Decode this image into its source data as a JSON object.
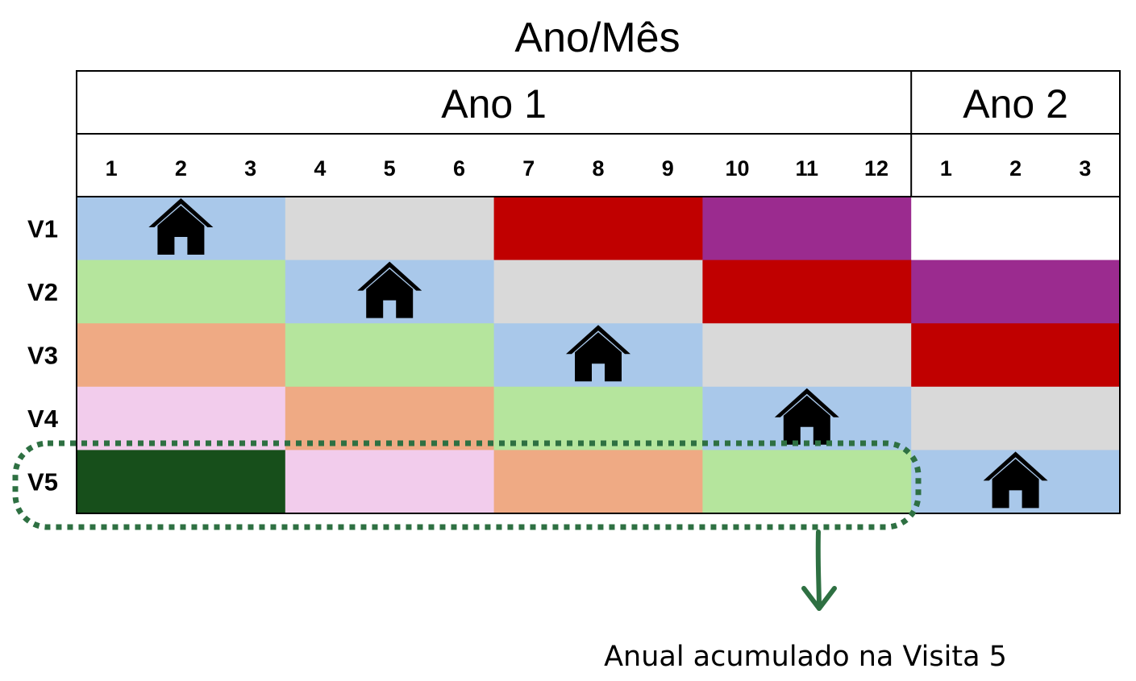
{
  "title": "Ano/Mês",
  "years": [
    {
      "label": "Ano 1",
      "months": [
        "1",
        "2",
        "3",
        "4",
        "5",
        "6",
        "7",
        "8",
        "9",
        "10",
        "11",
        "12"
      ]
    },
    {
      "label": "Ano 2",
      "months": [
        "1",
        "2",
        "3"
      ]
    }
  ],
  "palette": {
    "home_visit": "#a9c8ea",
    "gray": "#d9d9d9",
    "red": "#c00000",
    "purple": "#9b2b8f",
    "light_green": "#b5e59d",
    "salmon": "#efaa84",
    "pink": "#f2ccec",
    "dark_green": "#174f1b",
    "white": "#ffffff",
    "annotation": "#2e7042"
  },
  "rows": [
    {
      "label": "V1",
      "blocks": [
        "#a9c8ea",
        "#d9d9d9",
        "#c00000",
        "#9b2b8f",
        "#ffffff"
      ],
      "home_month_index": 1
    },
    {
      "label": "V2",
      "blocks": [
        "#b5e59d",
        "#a9c8ea",
        "#d9d9d9",
        "#c00000",
        "#9b2b8f"
      ],
      "home_month_index": 4
    },
    {
      "label": "V3",
      "blocks": [
        "#efaa84",
        "#b5e59d",
        "#a9c8ea",
        "#d9d9d9",
        "#c00000"
      ],
      "home_month_index": 7
    },
    {
      "label": "V4",
      "blocks": [
        "#f2ccec",
        "#efaa84",
        "#b5e59d",
        "#a9c8ea",
        "#d9d9d9"
      ],
      "home_month_index": 10
    },
    {
      "label": "V5",
      "blocks": [
        "#174f1b",
        "#f2ccec",
        "#efaa84",
        "#b5e59d",
        "#a9c8ea"
      ],
      "home_month_index": 13
    }
  ],
  "home_icon": "house-icon",
  "annotation": {
    "highlighted_row": "V5",
    "text": "Anual acumulado na Visita 5"
  }
}
